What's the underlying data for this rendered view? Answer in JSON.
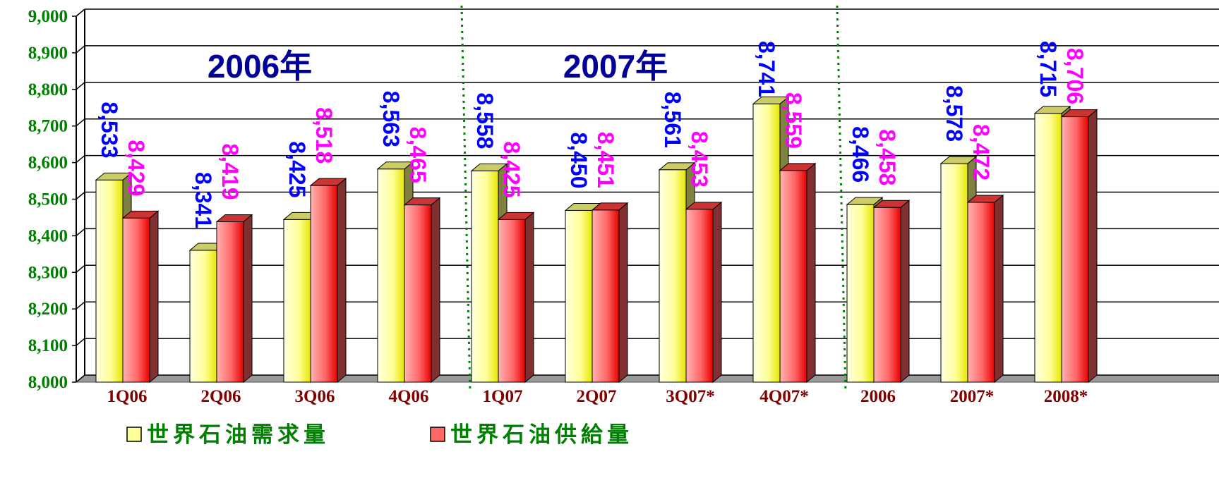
{
  "chart_data": {
    "type": "bar",
    "categories": [
      "1Q06",
      "2Q06",
      "3Q06",
      "4Q06",
      "1Q07",
      "2Q07",
      "3Q07*",
      "4Q07*",
      "2006",
      "2007*",
      "2008*"
    ],
    "series": [
      {
        "name": "世界石油需求量",
        "values": [
          8533,
          8341,
          8425,
          8563,
          8558,
          8450,
          8561,
          8741,
          8466,
          8578,
          8715
        ],
        "labels": [
          "8,533",
          "8,341",
          "8,425",
          "8,563",
          "8,558",
          "8,450",
          "8,561",
          "8,741",
          "8,466",
          "8,578",
          "8,715"
        ]
      },
      {
        "name": "世界石油供給量",
        "values": [
          8429,
          8419,
          8518,
          8465,
          8425,
          8451,
          8453,
          8559,
          8458,
          8472,
          8706
        ],
        "labels": [
          "8,429",
          "8,419",
          "8,518",
          "8,465",
          "8,425",
          "8,451",
          "8,453",
          "8,559",
          "8,458",
          "8,472",
          "8,706"
        ]
      }
    ],
    "period_labels": [
      "2006年",
      "2007年"
    ],
    "ylim": [
      8000,
      9000
    ],
    "yticks": [
      "8,000",
      "8,100",
      "8,200",
      "8,300",
      "8,400",
      "8,500",
      "8,600",
      "8,700",
      "8,800",
      "8,900",
      "9,000"
    ],
    "grid": true,
    "legend_position": "bottom-left",
    "colors": {
      "demand": "#ffff99",
      "supply": "#ff6666",
      "demand_label": "#0000ff",
      "supply_label": "#ff00ff",
      "period_label": "#000099",
      "axis_label": "#008000",
      "category_label": "#800000",
      "legend_text": "#008000",
      "separator": "#008000"
    }
  }
}
